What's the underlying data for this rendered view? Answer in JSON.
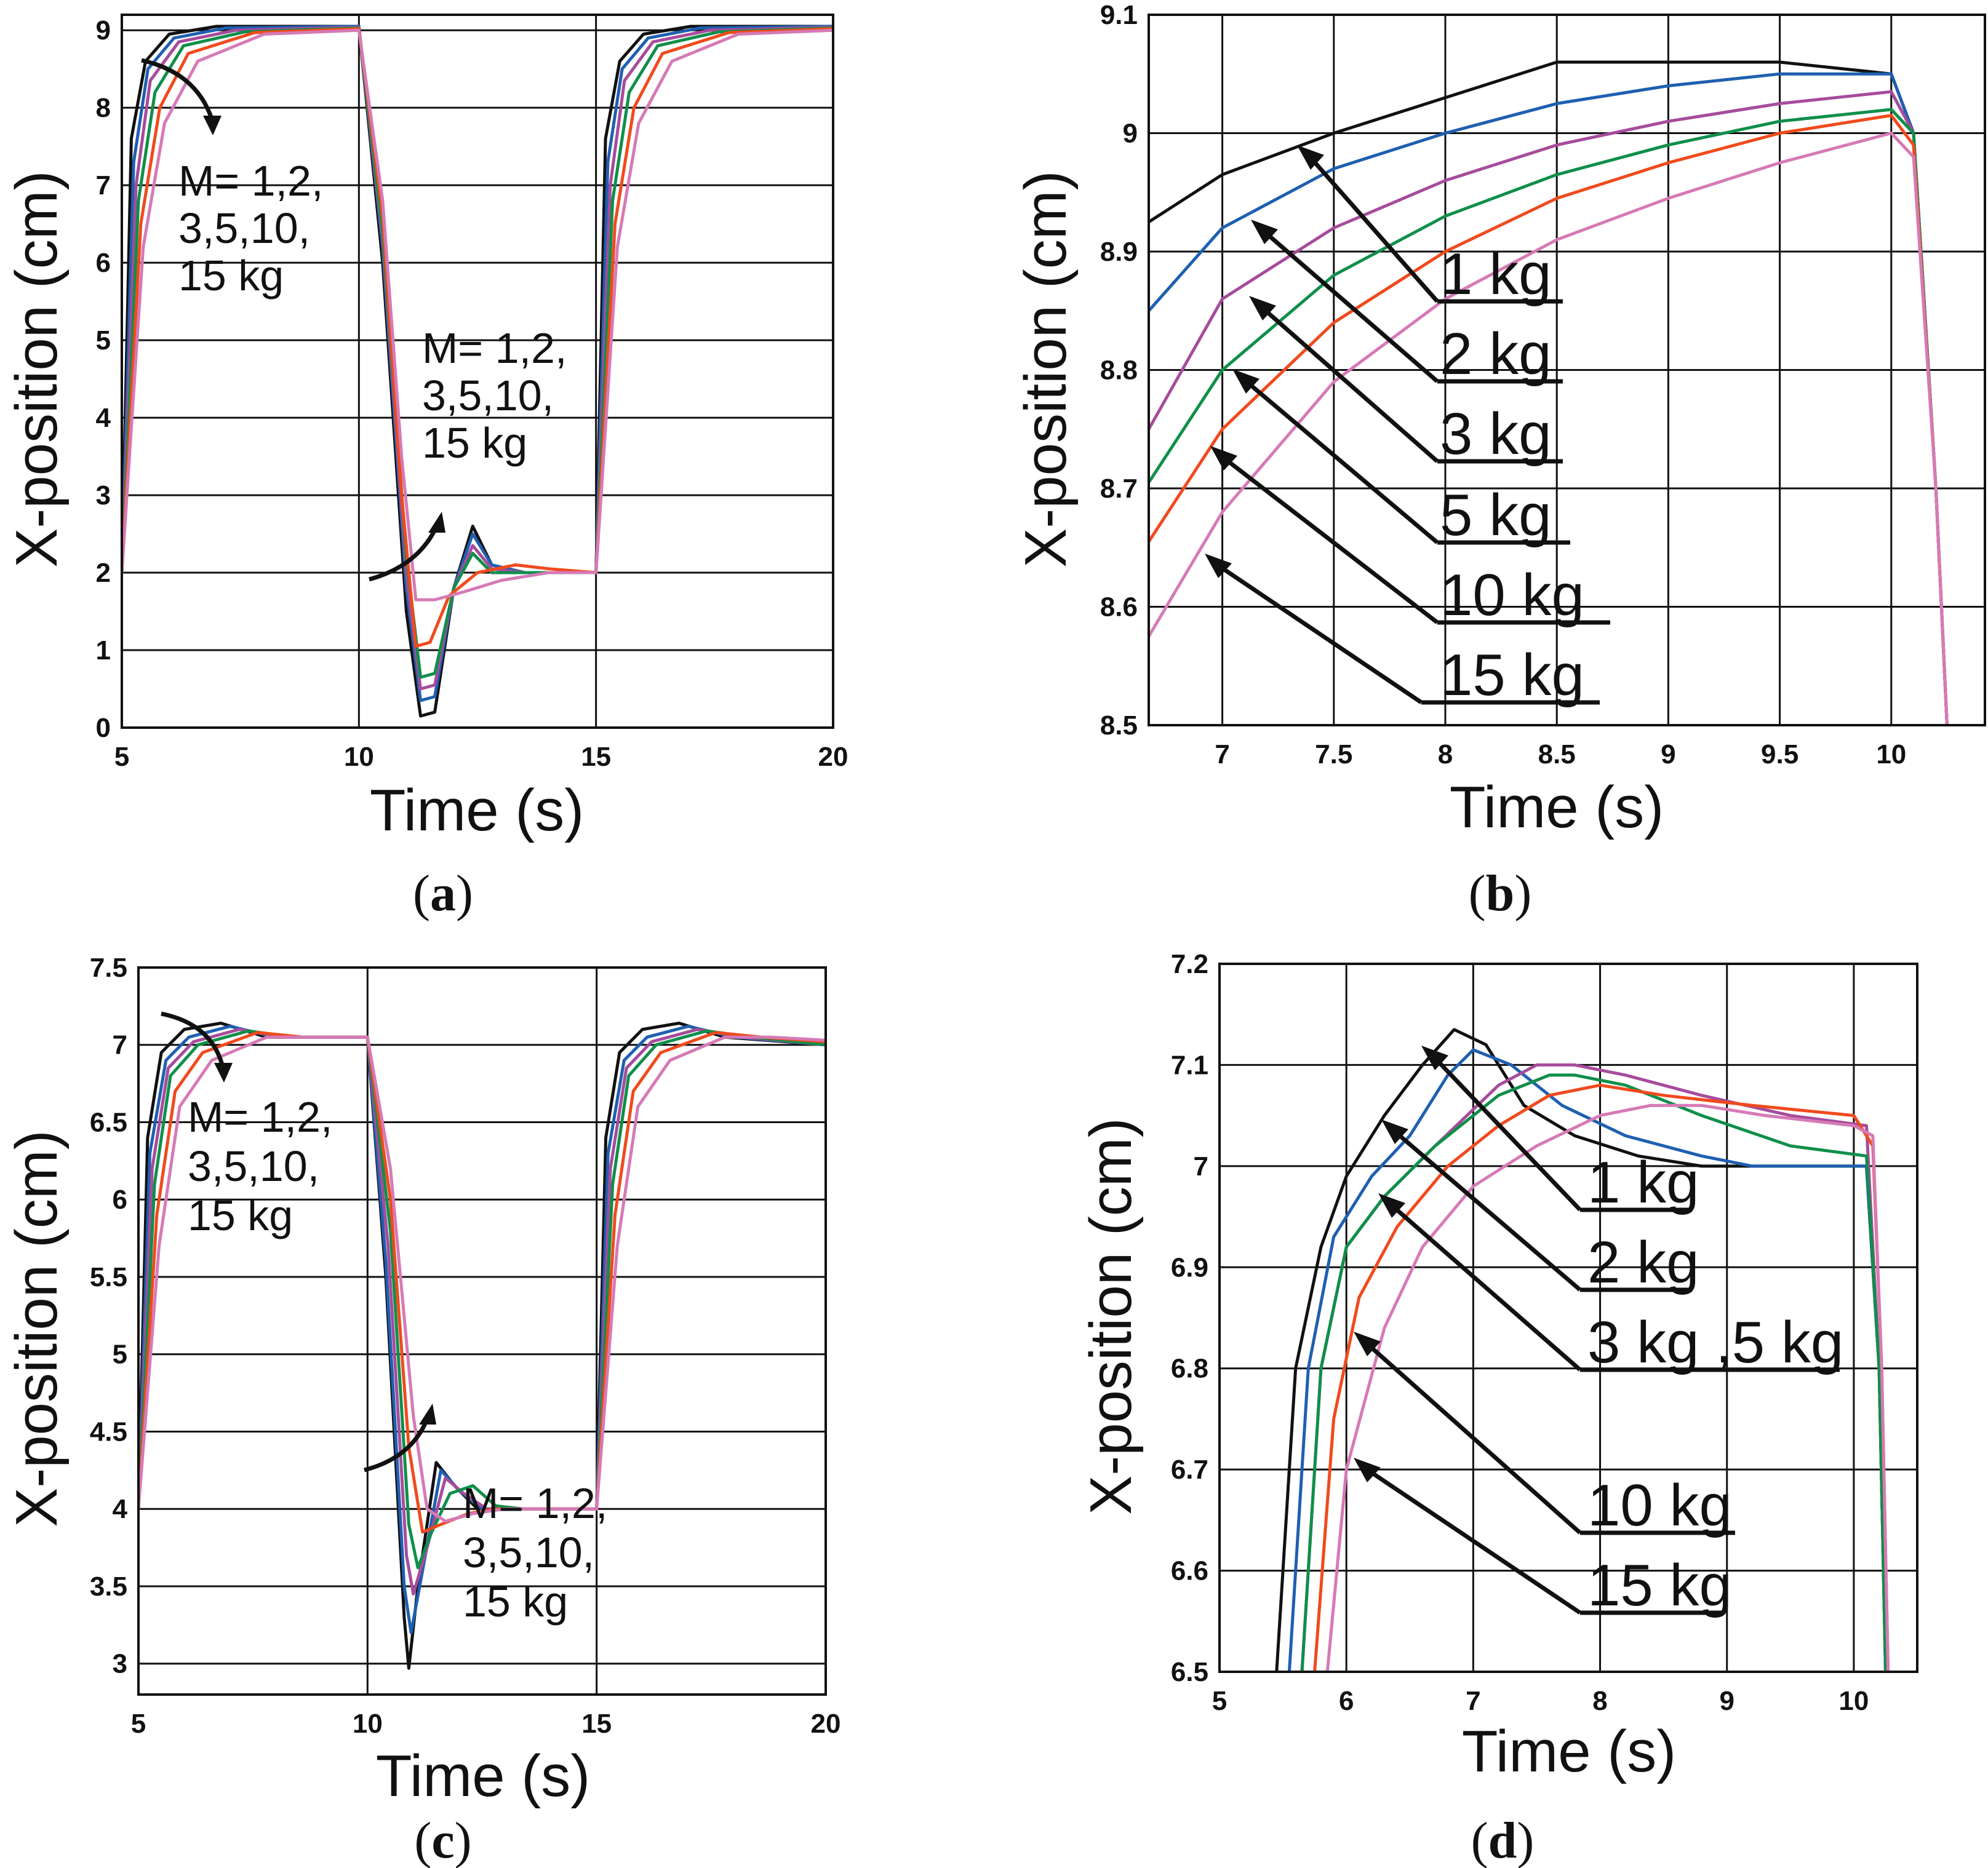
{
  "colors": {
    "1kg": "#111111",
    "2kg": "#1f5fb0",
    "3kg": "#a64c9c",
    "5kg": "#0f8f4a",
    "10kg": "#f04a1d",
    "15kg": "#d67ab6"
  },
  "chart_data": [
    {
      "panel": "(a)",
      "panel_letter": "a",
      "type": "line",
      "xlabel": "Time (s)",
      "ylabel": "X-position (cm)",
      "xlim": [
        5,
        20
      ],
      "ylim": [
        0,
        9.2
      ],
      "xticks": [
        "5",
        "10",
        "15",
        "20"
      ],
      "yticks": [
        "0",
        "1",
        "2",
        "3",
        "4",
        "5",
        "6",
        "7",
        "8",
        "9"
      ],
      "annotation_upper": [
        "M= 1,2,",
        "3,5,10,",
        "15 kg"
      ],
      "annotation_lower": [
        "M= 1,2,",
        "3,5,10,",
        "15 kg"
      ],
      "series": [
        {
          "name": "1 kg",
          "color_key": "1kg",
          "x": [
            5,
            5.2,
            5.5,
            6,
            7,
            10,
            10.5,
            11,
            11.3,
            11.6,
            12,
            12.4,
            12.8,
            13.5,
            15,
            15.2,
            15.5,
            16,
            17,
            20
          ],
          "y": [
            2,
            7.6,
            8.6,
            8.95,
            9.05,
            9.05,
            6,
            1.5,
            0.15,
            0.2,
            1.8,
            2.6,
            2.1,
            2.0,
            2.0,
            7.6,
            8.6,
            8.95,
            9.05,
            9.05
          ]
        },
        {
          "name": "2 kg",
          "color_key": "2kg",
          "x": [
            5,
            5.25,
            5.55,
            6.1,
            7.2,
            10,
            10.5,
            11,
            11.3,
            11.6,
            12,
            12.4,
            12.8,
            13.5,
            15,
            15.25,
            15.55,
            16.1,
            17.2,
            20
          ],
          "y": [
            2,
            7.3,
            8.5,
            8.9,
            9.03,
            9.05,
            6.2,
            1.8,
            0.35,
            0.4,
            1.8,
            2.5,
            2.1,
            2.0,
            2.0,
            7.3,
            8.5,
            8.9,
            9.03,
            9.05
          ]
        },
        {
          "name": "3 kg",
          "color_key": "3kg",
          "x": [
            5,
            5.3,
            5.6,
            6.2,
            7.4,
            10,
            10.5,
            11,
            11.3,
            11.6,
            12,
            12.4,
            12.8,
            13.5,
            15,
            15.3,
            15.6,
            16.2,
            17.4,
            20
          ],
          "y": [
            2,
            7.0,
            8.35,
            8.85,
            9.0,
            9.04,
            6.3,
            2.0,
            0.5,
            0.55,
            1.8,
            2.35,
            2.05,
            2.0,
            2.0,
            7.0,
            8.35,
            8.85,
            9.0,
            9.04
          ]
        },
        {
          "name": "5 kg",
          "color_key": "5kg",
          "x": [
            5,
            5.35,
            5.7,
            6.3,
            7.6,
            10,
            10.5,
            11,
            11.3,
            11.6,
            12,
            12.4,
            12.8,
            13.5,
            15,
            15.35,
            15.7,
            16.3,
            17.6,
            20
          ],
          "y": [
            2,
            6.8,
            8.2,
            8.8,
            8.98,
            9.03,
            6.4,
            2.2,
            0.65,
            0.7,
            1.8,
            2.25,
            2.0,
            2.0,
            2.0,
            6.8,
            8.2,
            8.8,
            8.98,
            9.03
          ]
        },
        {
          "name": "10 kg",
          "color_key": "10kg",
          "x": [
            5,
            5.4,
            5.8,
            6.4,
            7.8,
            10,
            10.5,
            10.9,
            11.2,
            11.5,
            11.9,
            12.5,
            13.3,
            14,
            15,
            15.4,
            15.8,
            16.4,
            17.8,
            20
          ],
          "y": [
            2,
            6.5,
            8.0,
            8.7,
            8.97,
            9.02,
            6.6,
            3.0,
            1.05,
            1.1,
            1.7,
            2.0,
            2.1,
            2.05,
            2.0,
            6.5,
            8.0,
            8.7,
            8.97,
            9.02
          ]
        },
        {
          "name": "15 kg",
          "color_key": "15kg",
          "x": [
            5,
            5.45,
            5.9,
            6.6,
            8.0,
            10,
            10.5,
            10.9,
            11.2,
            11.6,
            12.2,
            13,
            14,
            15,
            15.45,
            15.9,
            16.6,
            18,
            20
          ],
          "y": [
            2,
            6.2,
            7.8,
            8.6,
            8.95,
            9.0,
            6.8,
            3.5,
            1.65,
            1.65,
            1.75,
            1.9,
            2.0,
            2.0,
            6.2,
            7.8,
            8.6,
            8.95,
            9.0
          ]
        }
      ]
    },
    {
      "panel": "(b)",
      "panel_letter": "b",
      "type": "line",
      "xlabel": "Time (s)",
      "ylabel": "X-position (cm)",
      "xlim": [
        6.67,
        10.42
      ],
      "ylim": [
        8.5,
        9.1
      ],
      "xticks": [
        "7",
        "7.5",
        "8",
        "8.5",
        "9",
        "9.5",
        "10"
      ],
      "yticks": [
        "8.5",
        "8.6",
        "8.7",
        "8.8",
        "8.9",
        "9",
        "9.1"
      ],
      "labels": [
        "1 kg",
        "2 kg",
        "3 kg",
        "5 kg",
        "10 kg",
        "15 kg"
      ],
      "series": [
        {
          "name": "1 kg",
          "color_key": "1kg",
          "x": [
            6.67,
            7,
            7.5,
            8,
            8.5,
            9,
            9.5,
            10,
            10.1,
            10.2,
            10.25
          ],
          "y": [
            8.925,
            8.965,
            9.0,
            9.03,
            9.06,
            9.06,
            9.06,
            9.05,
            9.0,
            8.7,
            8.5
          ]
        },
        {
          "name": "2 kg",
          "color_key": "2kg",
          "x": [
            6.67,
            7,
            7.5,
            8,
            8.5,
            9,
            9.5,
            10,
            10.1,
            10.2,
            10.25
          ],
          "y": [
            8.85,
            8.92,
            8.97,
            9.0,
            9.025,
            9.04,
            9.05,
            9.05,
            9.0,
            8.7,
            8.5
          ]
        },
        {
          "name": "3 kg",
          "color_key": "3kg",
          "x": [
            6.67,
            7,
            7.5,
            8,
            8.5,
            9,
            9.5,
            10,
            10.1,
            10.2,
            10.25
          ],
          "y": [
            8.75,
            8.86,
            8.92,
            8.96,
            8.99,
            9.01,
            9.025,
            9.035,
            9.0,
            8.7,
            8.5
          ]
        },
        {
          "name": "5 kg",
          "color_key": "5kg",
          "x": [
            6.67,
            7,
            7.5,
            8,
            8.5,
            9,
            9.5,
            10,
            10.1,
            10.2,
            10.25
          ],
          "y": [
            8.705,
            8.8,
            8.88,
            8.93,
            8.965,
            8.99,
            9.01,
            9.02,
            9.0,
            8.7,
            8.5
          ]
        },
        {
          "name": "10 kg",
          "color_key": "10kg",
          "x": [
            6.67,
            7,
            7.5,
            8,
            8.5,
            9,
            9.5,
            10,
            10.1,
            10.2,
            10.25
          ],
          "y": [
            8.655,
            8.75,
            8.84,
            8.9,
            8.945,
            8.975,
            9.0,
            9.015,
            8.99,
            8.7,
            8.5
          ]
        },
        {
          "name": "15 kg",
          "color_key": "15kg",
          "x": [
            6.67,
            7,
            7.5,
            8,
            8.5,
            9,
            9.5,
            10,
            10.1,
            10.2,
            10.25
          ],
          "y": [
            8.575,
            8.68,
            8.79,
            8.86,
            8.91,
            8.945,
            8.975,
            9.0,
            8.98,
            8.7,
            8.5
          ]
        }
      ]
    },
    {
      "panel": "(c)",
      "panel_letter": "c",
      "type": "line",
      "xlabel": "Time (s)",
      "ylabel": "X-position (cm)",
      "xlim": [
        5,
        20
      ],
      "ylim": [
        2.8,
        7.5
      ],
      "xticks": [
        "5",
        "10",
        "15",
        "20"
      ],
      "yticks": [
        "3",
        "3.5",
        "4",
        "4.5",
        "5",
        "5.5",
        "6",
        "6.5",
        "7",
        "7.5"
      ],
      "annotation_upper": [
        "M= 1,2,",
        "3,5,10,",
        "15 kg"
      ],
      "annotation_lower": [
        "M= 1,2,",
        "3,5,10,",
        "15 kg"
      ],
      "series": [
        {
          "name": "1 kg",
          "color_key": "1kg",
          "x": [
            5,
            5.2,
            5.5,
            6,
            6.8,
            7.8,
            10,
            10.4,
            10.8,
            10.9,
            11.1,
            11.5,
            11.9,
            12.4,
            13,
            15,
            15.2,
            15.5,
            16,
            16.8,
            17.8,
            20
          ],
          "y": [
            4,
            6.4,
            6.95,
            7.1,
            7.14,
            7.05,
            7.05,
            5.5,
            3.3,
            2.97,
            3.5,
            4.3,
            4.15,
            4.0,
            4.0,
            4.0,
            6.4,
            6.95,
            7.1,
            7.14,
            7.05,
            7.0
          ]
        },
        {
          "name": "2 kg",
          "color_key": "2kg",
          "x": [
            5,
            5.25,
            5.6,
            6.1,
            7.0,
            8.0,
            10,
            10.4,
            10.8,
            10.95,
            11.2,
            11.6,
            12.0,
            12.5,
            13.1,
            15,
            15.25,
            15.6,
            16.1,
            17.0,
            18.0,
            20
          ],
          "y": [
            4,
            6.3,
            6.9,
            7.05,
            7.12,
            7.05,
            7.05,
            5.6,
            3.5,
            3.2,
            3.6,
            4.25,
            4.12,
            4.0,
            4.0,
            4.0,
            6.3,
            6.9,
            7.05,
            7.12,
            7.05,
            7.0
          ]
        },
        {
          "name": "3 kg",
          "color_key": "3kg",
          "x": [
            5,
            5.3,
            5.65,
            6.2,
            7.2,
            8.2,
            10,
            10.45,
            10.85,
            11.0,
            11.3,
            11.7,
            12.1,
            12.6,
            13.2,
            15,
            15.3,
            15.65,
            16.2,
            17.2,
            18.2,
            20
          ],
          "y": [
            4,
            6.2,
            6.85,
            7.02,
            7.1,
            7.05,
            7.05,
            5.7,
            3.7,
            3.45,
            3.75,
            4.2,
            4.1,
            4.0,
            4.0,
            4.0,
            6.2,
            6.85,
            7.02,
            7.1,
            7.05,
            7.0
          ]
        },
        {
          "name": "5 kg",
          "color_key": "5kg",
          "x": [
            5,
            5.35,
            5.7,
            6.3,
            7.4,
            8.4,
            10,
            10.5,
            10.9,
            11.1,
            11.4,
            11.8,
            12.3,
            12.8,
            13.4,
            15,
            15.35,
            15.7,
            16.3,
            17.4,
            18.4,
            20
          ],
          "y": [
            4,
            6.1,
            6.8,
            7.0,
            7.09,
            7.05,
            7.05,
            5.8,
            3.9,
            3.62,
            3.85,
            4.1,
            4.15,
            4.02,
            4.0,
            4.0,
            6.1,
            6.8,
            7.0,
            7.09,
            7.05,
            7.0
          ]
        },
        {
          "name": "10 kg",
          "color_key": "10kg",
          "x": [
            5,
            5.4,
            5.8,
            6.4,
            7.6,
            8.6,
            10,
            10.5,
            10.9,
            11.2,
            11.6,
            12.2,
            12.8,
            13.5,
            15,
            15.4,
            15.8,
            16.4,
            17.6,
            18.6,
            20
          ],
          "y": [
            4,
            5.9,
            6.7,
            6.95,
            7.08,
            7.05,
            7.05,
            6.0,
            4.4,
            3.85,
            3.9,
            3.97,
            4.0,
            4.0,
            4.0,
            5.9,
            6.7,
            6.95,
            7.08,
            7.05,
            7.02
          ]
        },
        {
          "name": "15 kg",
          "color_key": "15kg",
          "x": [
            5,
            5.45,
            5.9,
            6.6,
            7.8,
            8.8,
            10,
            10.5,
            11.0,
            11.3,
            11.7,
            12.3,
            13.0,
            15,
            15.45,
            15.9,
            16.6,
            17.8,
            18.8,
            20
          ],
          "y": [
            4,
            5.7,
            6.6,
            6.9,
            7.05,
            7.05,
            7.05,
            6.2,
            4.6,
            4.0,
            3.92,
            3.97,
            4.0,
            4.0,
            5.7,
            6.6,
            6.9,
            7.05,
            7.05,
            7.03
          ]
        }
      ]
    },
    {
      "panel": "(d)",
      "panel_letter": "d",
      "type": "line",
      "xlabel": "Time (s)",
      "ylabel": "X-position (cm)",
      "xlim": [
        5,
        10.5
      ],
      "ylim": [
        6.5,
        7.2
      ],
      "xticks": [
        "5",
        "6",
        "7",
        "8",
        "9",
        "10"
      ],
      "yticks": [
        "6.5",
        "6.6",
        "6.7",
        "6.8",
        "6.9",
        "7",
        "7.1",
        "7.2"
      ],
      "labels": [
        "1 kg",
        "2 kg",
        "3 kg ,5 kg",
        "10 kg",
        "15 kg"
      ],
      "series": [
        {
          "name": "1 kg",
          "color_key": "1kg",
          "x": [
            5.45,
            5.6,
            5.8,
            6.0,
            6.3,
            6.6,
            6.85,
            7.1,
            7.4,
            7.8,
            8.3,
            8.8,
            9.2,
            10.1,
            10.2,
            10.25
          ],
          "y": [
            6.5,
            6.8,
            6.92,
            6.99,
            7.05,
            7.1,
            7.135,
            7.12,
            7.06,
            7.03,
            7.01,
            7.0,
            7.0,
            7.0,
            6.8,
            6.5
          ]
        },
        {
          "name": "2 kg",
          "color_key": "2kg",
          "x": [
            5.55,
            5.7,
            5.9,
            6.2,
            6.5,
            6.8,
            7.0,
            7.3,
            7.7,
            8.2,
            8.8,
            9.2,
            10.1,
            10.2,
            10.25
          ],
          "y": [
            6.5,
            6.8,
            6.93,
            6.99,
            7.03,
            7.09,
            7.115,
            7.1,
            7.06,
            7.03,
            7.01,
            7.0,
            7.0,
            6.8,
            6.5
          ]
        },
        {
          "name": "3 kg",
          "color_key": "3kg",
          "x": [
            5.65,
            5.8,
            6.0,
            6.3,
            6.7,
            7.2,
            7.5,
            7.8,
            8.2,
            8.8,
            9.5,
            10.1,
            10.2,
            10.25
          ],
          "y": [
            6.5,
            6.8,
            6.92,
            6.97,
            7.02,
            7.08,
            7.1,
            7.1,
            7.09,
            7.07,
            7.05,
            7.04,
            6.8,
            6.5
          ]
        },
        {
          "name": "5 kg",
          "color_key": "5kg",
          "x": [
            5.65,
            5.8,
            6.0,
            6.3,
            6.7,
            7.2,
            7.6,
            7.8,
            8.2,
            8.8,
            9.5,
            10.1,
            10.2,
            10.25
          ],
          "y": [
            6.5,
            6.8,
            6.92,
            6.97,
            7.02,
            7.07,
            7.09,
            7.09,
            7.08,
            7.05,
            7.02,
            7.01,
            6.8,
            6.5
          ]
        },
        {
          "name": "10 kg",
          "color_key": "10kg",
          "x": [
            5.75,
            5.9,
            6.1,
            6.4,
            6.8,
            7.2,
            7.6,
            8.0,
            8.5,
            9.2,
            10.0,
            10.15,
            10.22,
            10.27
          ],
          "y": [
            6.5,
            6.75,
            6.87,
            6.94,
            7.0,
            7.04,
            7.07,
            7.08,
            7.07,
            7.06,
            7.05,
            7.02,
            6.8,
            6.5
          ]
        },
        {
          "name": "15 kg",
          "color_key": "15kg",
          "x": [
            5.85,
            6.0,
            6.3,
            6.6,
            7.0,
            7.5,
            8.0,
            8.4,
            8.8,
            9.3,
            10.0,
            10.15,
            10.22,
            10.27
          ],
          "y": [
            6.5,
            6.7,
            6.84,
            6.92,
            6.98,
            7.02,
            7.05,
            7.06,
            7.06,
            7.05,
            7.04,
            7.03,
            6.8,
            6.5
          ]
        }
      ]
    }
  ]
}
